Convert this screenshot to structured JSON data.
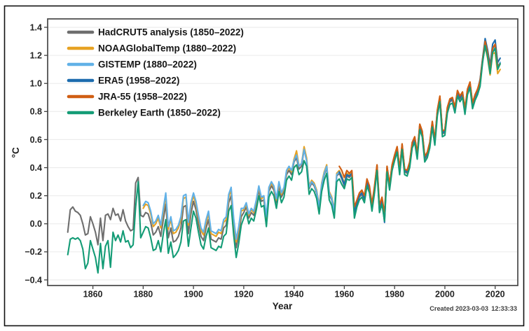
{
  "footer": {
    "created_date": "Created 2023-03-03",
    "created_time": "12:33:33"
  },
  "chart_data": {
    "type": "line",
    "title": "",
    "xlabel": "Year",
    "ylabel": "°C",
    "xlim": [
      1842,
      2029
    ],
    "ylim": [
      -0.44,
      1.46
    ],
    "grid": "horizontal",
    "legend_position": "top-left",
    "xticks": [
      1860,
      1880,
      1900,
      1920,
      1940,
      1960,
      1980,
      2000,
      2020
    ],
    "ytick_values": [
      -0.4,
      -0.2,
      0.0,
      0.2,
      0.4,
      0.6,
      0.8,
      1.0,
      1.2,
      1.4
    ],
    "ytick_labels": [
      "−0.4",
      "−0.2",
      "0.0",
      "0.2",
      "0.4",
      "0.6",
      "0.8",
      "1.0",
      "1.2",
      "1.4"
    ],
    "series": [
      {
        "id": "hadcrut5",
        "name": "HadCRUT5 analysis (1850–2022)",
        "color": "#6e6e6e",
        "start_year": 1850,
        "end_year": 2022,
        "values": [
          -0.06,
          0.1,
          0.12,
          0.09,
          0.08,
          0.06,
          0.0,
          -0.08,
          -0.07,
          0.05,
          0.0,
          -0.06,
          -0.15,
          0.04,
          -0.12,
          0.06,
          0.07,
          0.03,
          0.11,
          0.06,
          0.07,
          0.02,
          0.1,
          0.02,
          -0.02,
          -0.05,
          -0.04,
          0.29,
          0.33,
          0.06,
          0.05,
          0.08,
          0.07,
          0.01,
          -0.08,
          -0.06,
          -0.02,
          -0.09,
          0.03,
          0.14,
          -0.1,
          -0.03,
          -0.13,
          -0.12,
          -0.09,
          -0.03,
          0.12,
          0.13,
          -0.07,
          0.07,
          0.16,
          0.1,
          0.0,
          -0.09,
          -0.12,
          -0.03,
          0.03,
          -0.11,
          -0.12,
          -0.13,
          -0.1,
          -0.11,
          -0.03,
          -0.01,
          0.15,
          0.2,
          -0.02,
          -0.17,
          -0.08,
          0.05,
          0.08,
          0.12,
          0.04,
          0.08,
          0.06,
          0.14,
          0.24,
          0.16,
          0.17,
          0.02,
          0.23,
          0.27,
          0.24,
          0.15,
          0.27,
          0.19,
          0.23,
          0.35,
          0.38,
          0.35,
          0.44,
          0.47,
          0.39,
          0.41,
          0.53,
          0.45,
          0.25,
          0.29,
          0.27,
          0.22,
          0.11,
          0.27,
          0.35,
          0.4,
          0.21,
          0.17,
          0.08,
          0.34,
          0.36,
          0.32,
          0.27,
          0.34,
          0.33,
          0.35,
          0.08,
          0.14,
          0.19,
          0.21,
          0.17,
          0.29,
          0.24,
          0.11,
          0.24,
          0.4,
          0.1,
          0.16,
          0.04,
          0.39,
          0.26,
          0.4,
          0.47,
          0.53,
          0.37,
          0.55,
          0.37,
          0.36,
          0.42,
          0.56,
          0.6,
          0.48,
          0.69,
          0.64,
          0.46,
          0.49,
          0.56,
          0.71,
          0.58,
          0.79,
          0.89,
          0.64,
          0.65,
          0.81,
          0.87,
          0.88,
          0.81,
          0.93,
          0.89,
          0.92,
          0.8,
          0.94,
          0.99,
          0.84,
          0.9,
          0.94,
          1.0,
          1.17,
          1.29,
          1.21,
          1.09,
          1.24,
          1.27,
          1.12,
          1.15
        ]
      },
      {
        "id": "noaa",
        "name": "NOAAGlobalTemp (1880–2022)",
        "color": "#e7a223",
        "start_year": 1880,
        "end_year": 2022,
        "values": [
          0.11,
          0.14,
          0.13,
          0.07,
          -0.02,
          0.0,
          0.04,
          -0.03,
          0.09,
          0.2,
          -0.04,
          0.03,
          -0.07,
          -0.06,
          -0.03,
          0.03,
          0.18,
          0.19,
          -0.01,
          0.13,
          0.2,
          0.14,
          0.04,
          -0.05,
          -0.08,
          0.01,
          0.07,
          -0.07,
          -0.08,
          -0.09,
          -0.06,
          -0.07,
          0.01,
          0.03,
          0.19,
          0.24,
          0.02,
          -0.13,
          -0.04,
          0.09,
          0.1,
          0.14,
          0.06,
          0.1,
          0.08,
          0.16,
          0.26,
          0.18,
          0.19,
          0.04,
          0.25,
          0.29,
          0.26,
          0.17,
          0.29,
          0.21,
          0.25,
          0.37,
          0.4,
          0.37,
          0.46,
          0.52,
          0.41,
          0.43,
          0.55,
          0.47,
          0.27,
          0.31,
          0.29,
          0.24,
          0.13,
          0.29,
          0.37,
          0.42,
          0.23,
          0.19,
          0.1,
          0.36,
          0.38,
          0.34,
          0.29,
          0.36,
          0.35,
          0.37,
          0.1,
          0.16,
          0.21,
          0.23,
          0.19,
          0.31,
          0.26,
          0.13,
          0.26,
          0.42,
          0.12,
          0.18,
          0.06,
          0.41,
          0.28,
          0.42,
          0.49,
          0.55,
          0.39,
          0.57,
          0.39,
          0.38,
          0.44,
          0.58,
          0.62,
          0.5,
          0.71,
          0.66,
          0.48,
          0.51,
          0.58,
          0.73,
          0.6,
          0.81,
          0.91,
          0.66,
          0.67,
          0.83,
          0.89,
          0.9,
          0.83,
          0.95,
          0.91,
          0.94,
          0.82,
          0.96,
          1.01,
          0.86,
          0.92,
          0.96,
          1.02,
          1.17,
          1.26,
          1.18,
          1.06,
          1.21,
          1.22,
          1.07,
          1.1
        ]
      },
      {
        "id": "gistemp",
        "name": "GISTEMP (1880–2022)",
        "color": "#61b1e7",
        "start_year": 1880,
        "end_year": 2022,
        "values": [
          0.13,
          0.16,
          0.15,
          0.09,
          0.0,
          0.02,
          0.06,
          -0.01,
          0.11,
          0.22,
          -0.02,
          0.05,
          -0.05,
          -0.04,
          -0.01,
          0.05,
          0.2,
          0.21,
          0.01,
          0.15,
          0.22,
          0.16,
          0.06,
          -0.03,
          -0.06,
          0.03,
          0.09,
          -0.05,
          -0.06,
          -0.07,
          -0.04,
          -0.05,
          0.03,
          0.05,
          0.21,
          0.26,
          0.04,
          -0.11,
          -0.02,
          0.11,
          0.11,
          0.15,
          0.07,
          0.11,
          0.09,
          0.17,
          0.27,
          0.19,
          0.2,
          0.05,
          0.26,
          0.3,
          0.27,
          0.18,
          0.3,
          0.22,
          0.26,
          0.38,
          0.41,
          0.38,
          0.45,
          0.49,
          0.41,
          0.43,
          0.53,
          0.45,
          0.26,
          0.3,
          0.28,
          0.23,
          0.12,
          0.28,
          0.36,
          0.41,
          0.22,
          0.18,
          0.09,
          0.35,
          0.37,
          0.33,
          0.28,
          0.35,
          0.34,
          0.36,
          0.09,
          0.15,
          0.2,
          0.22,
          0.18,
          0.3,
          0.25,
          0.12,
          0.25,
          0.41,
          0.11,
          0.17,
          0.05,
          0.4,
          0.27,
          0.41,
          0.48,
          0.54,
          0.38,
          0.56,
          0.38,
          0.37,
          0.43,
          0.57,
          0.61,
          0.49,
          0.7,
          0.65,
          0.47,
          0.5,
          0.57,
          0.72,
          0.59,
          0.8,
          0.9,
          0.65,
          0.66,
          0.82,
          0.88,
          0.89,
          0.82,
          0.94,
          0.9,
          0.93,
          0.81,
          0.95,
          1.0,
          0.85,
          0.91,
          0.95,
          1.01,
          1.16,
          1.28,
          1.2,
          1.08,
          1.23,
          1.26,
          1.11,
          1.15
        ]
      },
      {
        "id": "era5",
        "name": "ERA5 (1958–2022)",
        "color": "#1d6cae",
        "start_year": 1958,
        "end_year": 2022,
        "values": [
          0.37,
          0.33,
          0.28,
          0.35,
          0.34,
          0.36,
          0.08,
          0.15,
          0.2,
          0.22,
          0.18,
          0.3,
          0.25,
          0.12,
          0.25,
          0.41,
          0.08,
          0.17,
          0.01,
          0.4,
          0.27,
          0.41,
          0.48,
          0.54,
          0.38,
          0.56,
          0.38,
          0.37,
          0.43,
          0.57,
          0.61,
          0.49,
          0.7,
          0.65,
          0.47,
          0.5,
          0.57,
          0.72,
          0.59,
          0.8,
          0.9,
          0.65,
          0.66,
          0.82,
          0.88,
          0.89,
          0.82,
          0.94,
          0.9,
          0.93,
          0.81,
          0.95,
          1.0,
          0.85,
          0.91,
          0.95,
          1.03,
          1.18,
          1.32,
          1.24,
          1.13,
          1.28,
          1.31,
          1.15,
          1.18
        ]
      },
      {
        "id": "jra55",
        "name": "JRA-55 (1958–2022)",
        "color": "#d05e13",
        "start_year": 1958,
        "end_year": 2022,
        "values": [
          0.41,
          0.38,
          0.33,
          0.38,
          0.36,
          0.38,
          0.12,
          0.17,
          0.22,
          0.24,
          0.2,
          0.32,
          0.27,
          0.14,
          0.27,
          0.42,
          0.13,
          0.19,
          0.07,
          0.41,
          0.28,
          0.42,
          0.49,
          0.55,
          0.39,
          0.57,
          0.39,
          0.38,
          0.44,
          0.58,
          0.62,
          0.5,
          0.71,
          0.66,
          0.48,
          0.51,
          0.58,
          0.73,
          0.6,
          0.81,
          0.91,
          0.66,
          0.67,
          0.83,
          0.89,
          0.9,
          0.83,
          0.95,
          0.91,
          0.94,
          0.82,
          0.96,
          1.01,
          0.86,
          0.92,
          0.96,
          1.02,
          1.17,
          1.3,
          1.22,
          1.1,
          1.25,
          1.28,
          1.12,
          1.14
        ]
      },
      {
        "id": "berkeley",
        "name": "Berkeley Earth (1850–2022)",
        "color": "#149c76",
        "start_year": 1850,
        "end_year": 2022,
        "values": [
          -0.22,
          -0.11,
          -0.1,
          -0.11,
          -0.1,
          -0.12,
          -0.18,
          -0.32,
          -0.28,
          -0.12,
          -0.18,
          -0.24,
          -0.35,
          -0.14,
          -0.32,
          -0.16,
          -0.12,
          -0.31,
          -0.06,
          -0.12,
          -0.08,
          -0.13,
          -0.05,
          -0.13,
          -0.12,
          -0.17,
          -0.15,
          0.12,
          0.3,
          -0.1,
          -0.06,
          -0.02,
          -0.03,
          -0.1,
          -0.19,
          -0.18,
          -0.12,
          -0.2,
          -0.07,
          0.03,
          -0.21,
          -0.13,
          -0.24,
          -0.22,
          -0.19,
          -0.13,
          0.02,
          0.03,
          -0.16,
          -0.03,
          0.09,
          0.04,
          -0.06,
          -0.15,
          -0.18,
          -0.09,
          -0.03,
          -0.17,
          -0.18,
          -0.19,
          -0.16,
          -0.17,
          -0.09,
          -0.07,
          0.09,
          0.13,
          -0.08,
          -0.24,
          -0.14,
          -0.01,
          0.04,
          0.08,
          0.0,
          0.04,
          0.02,
          0.1,
          0.2,
          0.12,
          0.13,
          -0.02,
          0.19,
          0.23,
          0.2,
          0.11,
          0.23,
          0.15,
          0.19,
          0.31,
          0.34,
          0.31,
          0.4,
          0.42,
          0.35,
          0.37,
          0.45,
          0.41,
          0.21,
          0.25,
          0.23,
          0.18,
          0.07,
          0.23,
          0.31,
          0.36,
          0.17,
          0.13,
          0.04,
          0.3,
          0.32,
          0.28,
          0.25,
          0.32,
          0.31,
          0.33,
          0.04,
          0.12,
          0.17,
          0.19,
          0.15,
          0.27,
          0.22,
          0.09,
          0.22,
          0.38,
          0.08,
          0.14,
          0.02,
          0.37,
          0.24,
          0.38,
          0.45,
          0.51,
          0.35,
          0.53,
          0.35,
          0.34,
          0.4,
          0.54,
          0.58,
          0.46,
          0.67,
          0.62,
          0.44,
          0.47,
          0.54,
          0.69,
          0.56,
          0.77,
          0.87,
          0.62,
          0.63,
          0.79,
          0.85,
          0.86,
          0.79,
          0.91,
          0.87,
          0.9,
          0.78,
          0.92,
          0.97,
          0.82,
          0.88,
          0.92,
          0.98,
          1.15,
          1.27,
          1.19,
          1.07,
          1.22,
          1.25,
          1.1,
          1.14
        ]
      }
    ]
  }
}
